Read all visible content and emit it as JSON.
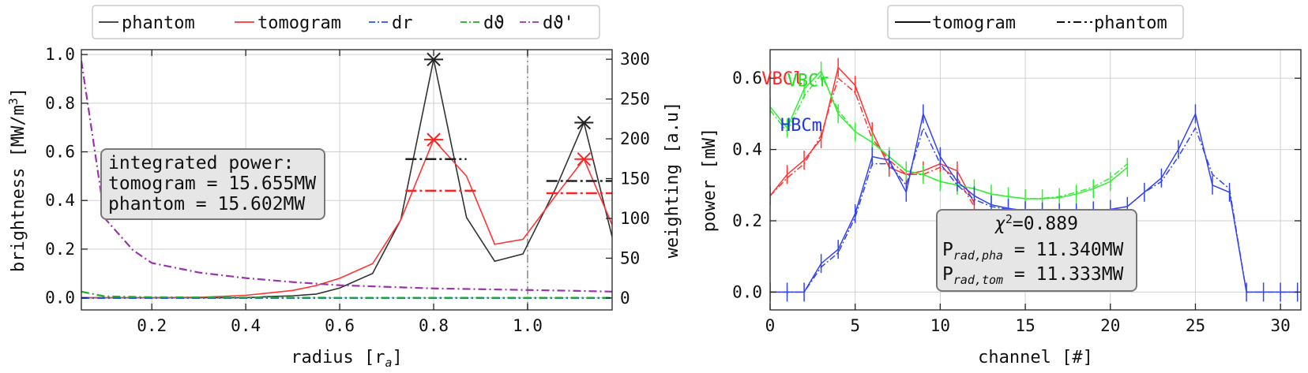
{
  "chart_data": [
    {
      "type": "line",
      "xlabel": "radius [r",
      "xlabel_sub": "a",
      "xlabel_end": "]",
      "ylabel": "brightness [MW/m",
      "ylabel_sup": "3",
      "ylabel_end": "]",
      "y2label": "weighting [a.u]",
      "xlim": [
        0.05,
        1.18
      ],
      "ylim": [
        -0.05,
        1.02
      ],
      "y2lim": [
        -15,
        312
      ],
      "xticks": [
        0.2,
        0.4,
        0.6,
        0.8,
        1.0
      ],
      "yticks": [
        0.0,
        0.2,
        0.4,
        0.6,
        0.8,
        1.0
      ],
      "y2ticks": [
        0,
        50,
        100,
        150,
        200,
        250,
        300
      ],
      "vline_x": 1.0,
      "legend": {
        "placement": "top",
        "entries": [
          {
            "label": "phantom",
            "color": "#333333",
            "style": "solid"
          },
          {
            "label": "tomogram",
            "color": "#ff3333",
            "style": "solid"
          },
          {
            "label": "dr",
            "color": "#2255ee",
            "style": "dashdot"
          },
          {
            "label": "dϑ",
            "color": "#22aa22",
            "style": "dashdot"
          },
          {
            "label": "dϑ'",
            "color": "#9933aa",
            "style": "dashdot"
          }
        ]
      },
      "series": [
        {
          "name": "phantom",
          "color": "#333333",
          "axis": "left",
          "x": [
            0.05,
            0.1,
            0.2,
            0.3,
            0.4,
            0.45,
            0.5,
            0.55,
            0.6,
            0.67,
            0.73,
            0.8,
            0.87,
            0.93,
            0.99,
            1.06,
            1.12,
            1.18
          ],
          "y": [
            0.0,
            0.0,
            0.0,
            0.0,
            0.0,
            0.005,
            0.008,
            0.015,
            0.04,
            0.1,
            0.32,
            0.98,
            0.33,
            0.15,
            0.18,
            0.45,
            0.72,
            0.25
          ]
        },
        {
          "name": "tomogram",
          "color": "#ff3333",
          "axis": "left",
          "x": [
            0.05,
            0.1,
            0.2,
            0.3,
            0.4,
            0.45,
            0.5,
            0.55,
            0.6,
            0.67,
            0.73,
            0.8,
            0.87,
            0.93,
            0.99,
            1.06,
            1.12,
            1.18
          ],
          "y": [
            0.0,
            0.0,
            0.0,
            0.002,
            0.01,
            0.02,
            0.03,
            0.05,
            0.08,
            0.14,
            0.32,
            0.65,
            0.5,
            0.22,
            0.24,
            0.42,
            0.57,
            0.3
          ]
        },
        {
          "name": "dr",
          "color": "#2255ee",
          "axis": "right",
          "x": [
            0.05,
            1.18
          ],
          "y": [
            0,
            0
          ]
        },
        {
          "name": "dϑ",
          "color": "#22aa22",
          "axis": "right",
          "x": [
            0.05,
            0.1,
            0.2,
            0.4,
            0.6,
            0.8,
            1.0,
            1.18
          ],
          "y": [
            8,
            2,
            1,
            0.5,
            0.3,
            0.2,
            0.2,
            0.2
          ]
        },
        {
          "name": "dϑ'",
          "color": "#9933aa",
          "axis": "right",
          "x": [
            0.05,
            0.1,
            0.16,
            0.2,
            0.3,
            0.4,
            0.5,
            0.6,
            0.7,
            0.8,
            0.9,
            1.0,
            1.1,
            1.18
          ],
          "y": [
            298,
            100,
            60,
            44,
            32,
            25,
            20,
            16,
            14,
            12,
            11,
            10,
            9,
            8
          ]
        }
      ],
      "markers": [
        {
          "x": 0.8,
          "y": 0.98,
          "color": "#222222"
        },
        {
          "x": 1.12,
          "y": 0.72,
          "color": "#222222"
        },
        {
          "x": 0.8,
          "y": 0.65,
          "color": "#ff2222"
        },
        {
          "x": 1.12,
          "y": 0.57,
          "color": "#ff2222"
        }
      ],
      "level_lines": [
        {
          "x1": 0.74,
          "x2": 0.87,
          "y": 0.57,
          "color": "#222222",
          "style": "dashdot"
        },
        {
          "x1": 1.04,
          "x2": 1.18,
          "y": 0.48,
          "color": "#222222",
          "style": "dashdot"
        },
        {
          "x1": 0.74,
          "x2": 0.89,
          "y": 0.44,
          "color": "#ff2222",
          "style": "dashdot"
        },
        {
          "x1": 1.04,
          "x2": 1.18,
          "y": 0.43,
          "color": "#ff2222",
          "style": "dashdot"
        }
      ],
      "annotation": {
        "line1": "integrated power:",
        "line2": "tomogram = 15.655MW",
        "line3": "phantom = 15.602MW"
      }
    },
    {
      "type": "line",
      "xlabel": "channel [#]",
      "ylabel": "power [mW]",
      "xlim": [
        0,
        31.2
      ],
      "ylim": [
        -0.05,
        0.68
      ],
      "xticks": [
        0,
        5,
        10,
        15,
        20,
        25,
        30
      ],
      "yticks": [
        0.0,
        0.2,
        0.4,
        0.6
      ],
      "legend": {
        "placement": "top",
        "entries": [
          {
            "label": "tomogram",
            "style": "solid"
          },
          {
            "label": "phantom",
            "style": "dashdot"
          }
        ]
      },
      "camera_labels": [
        {
          "text": "VBCl",
          "color": "#ff2222",
          "x": -0.5,
          "y": 0.6
        },
        {
          "text": "VBCr",
          "color": "#22dd22",
          "x": 1.0,
          "y": 0.595
        },
        {
          "text": "HBCm",
          "color": "#2233ee",
          "x": 0.6,
          "y": 0.47
        }
      ],
      "series": [
        {
          "name": "VBCl tomogram",
          "color": "#ff3333",
          "style": "solid",
          "x": [
            0,
            1,
            2,
            3,
            4,
            5,
            6,
            7,
            8,
            9,
            10,
            11,
            12
          ],
          "y": [
            0.27,
            0.33,
            0.37,
            0.43,
            0.63,
            0.58,
            0.45,
            0.35,
            0.33,
            0.34,
            0.36,
            0.34,
            0.25
          ]
        },
        {
          "name": "VBCl phantom",
          "color": "#ff3333",
          "style": "dashdot",
          "x": [
            0,
            1,
            2,
            3,
            4,
            5,
            6,
            7,
            8,
            9,
            10,
            11,
            12
          ],
          "y": [
            0.27,
            0.32,
            0.36,
            0.44,
            0.6,
            0.56,
            0.43,
            0.37,
            0.33,
            0.33,
            0.35,
            0.32,
            0.24
          ]
        },
        {
          "name": "VBCr tomogram",
          "color": "#33ee33",
          "style": "solid",
          "x": [
            0,
            1,
            2,
            3,
            4,
            5,
            6,
            7,
            8,
            9,
            10,
            11,
            12,
            13,
            14,
            15,
            16,
            17,
            18,
            19,
            20,
            21
          ],
          "y": [
            0.52,
            0.46,
            0.57,
            0.62,
            0.5,
            0.45,
            0.42,
            0.38,
            0.34,
            0.33,
            0.31,
            0.3,
            0.29,
            0.275,
            0.268,
            0.262,
            0.262,
            0.265,
            0.275,
            0.29,
            0.31,
            0.35
          ]
        },
        {
          "name": "VBCr phantom",
          "color": "#33ee33",
          "style": "dashdot",
          "x": [
            0,
            1,
            2,
            3,
            4,
            5,
            6,
            7,
            8,
            9,
            10,
            11,
            12,
            13,
            14,
            15,
            16,
            17,
            18,
            19,
            20,
            21
          ],
          "y": [
            0.51,
            0.45,
            0.55,
            0.61,
            0.51,
            0.45,
            0.42,
            0.38,
            0.34,
            0.33,
            0.31,
            0.3,
            0.29,
            0.275,
            0.268,
            0.262,
            0.263,
            0.268,
            0.28,
            0.295,
            0.32,
            0.36
          ]
        },
        {
          "name": "HBCm tomogram",
          "color": "#3344ee",
          "style": "solid",
          "x": [
            0,
            1,
            2,
            3,
            4,
            5,
            6,
            7,
            8,
            9,
            10,
            11,
            12,
            13,
            14,
            15,
            16,
            17,
            18,
            19,
            20,
            21,
            22,
            23,
            24,
            25,
            26,
            27,
            28,
            29,
            30,
            31
          ],
          "y": [
            0.0,
            0.0,
            0.0,
            0.08,
            0.12,
            0.22,
            0.38,
            0.37,
            0.28,
            0.5,
            0.38,
            0.31,
            0.27,
            0.245,
            0.235,
            0.228,
            0.225,
            0.222,
            0.222,
            0.228,
            0.232,
            0.24,
            0.28,
            0.32,
            0.4,
            0.5,
            0.3,
            0.28,
            0.0,
            0.0,
            0.0,
            0.0
          ]
        },
        {
          "name": "HBCm phantom",
          "color": "#3344ee",
          "style": "dashdot",
          "x": [
            0,
            1,
            2,
            3,
            4,
            5,
            6,
            7,
            8,
            9,
            10,
            11,
            12,
            13,
            14,
            15,
            16,
            17,
            18,
            19,
            20,
            21,
            22,
            23,
            24,
            25,
            26,
            27,
            28,
            29,
            30,
            31
          ],
          "y": [
            0.0,
            0.0,
            0.0,
            0.07,
            0.11,
            0.21,
            0.36,
            0.36,
            0.3,
            0.46,
            0.36,
            0.3,
            0.26,
            0.24,
            0.232,
            0.226,
            0.224,
            0.221,
            0.222,
            0.227,
            0.232,
            0.24,
            0.28,
            0.31,
            0.38,
            0.46,
            0.33,
            0.29,
            0.0,
            0.0,
            0.0,
            0.0
          ]
        }
      ],
      "annotation": {
        "chi_symbol": "χ",
        "chi_sup": "2",
        "chi_value": "=0.889",
        "p_sym1": "P",
        "p_sub1": "rad,pha",
        "p_val1": " = 11.340MW",
        "p_sym2": "P",
        "p_sub2": "rad,tom",
        "p_val2": " = 11.333MW"
      }
    }
  ]
}
